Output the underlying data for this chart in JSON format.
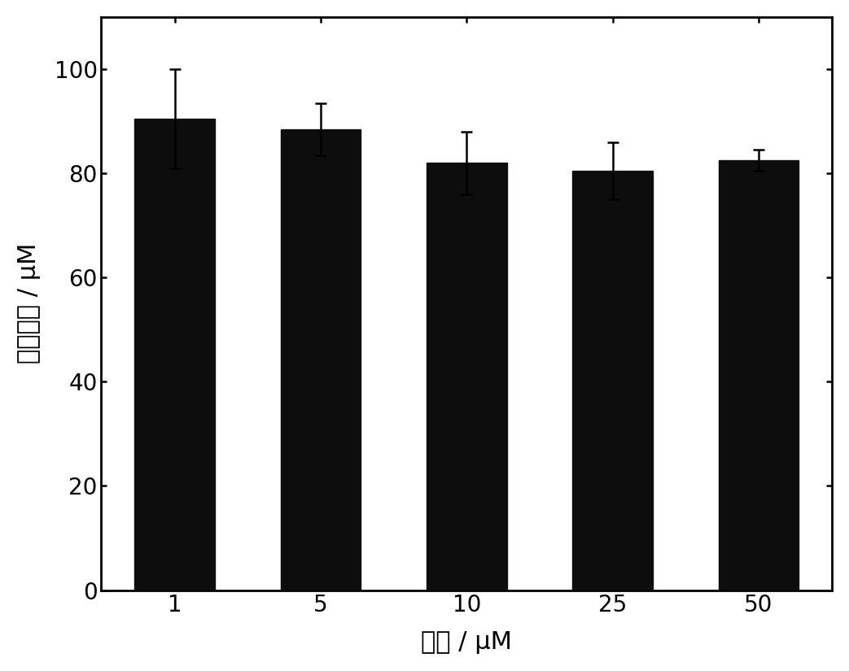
{
  "categories": [
    "1",
    "5",
    "10",
    "25",
    "50"
  ],
  "values": [
    90.5,
    88.5,
    82.0,
    80.5,
    82.5
  ],
  "errors": [
    9.5,
    5.0,
    6.0,
    5.5,
    2.0
  ],
  "bar_color": "#0d0d0d",
  "bar_width": 0.55,
  "xlabel": "浓度 / μM",
  "ylabel": "细胞活性 / μM",
  "ylim": [
    0,
    110
  ],
  "yticks": [
    0,
    20,
    40,
    60,
    80,
    100
  ],
  "label_fontsize": 22,
  "tick_fontsize": 20,
  "background_color": "#ffffff",
  "error_capsize": 5,
  "error_linewidth": 1.8,
  "error_capthick": 1.8,
  "spine_linewidth": 2.0
}
